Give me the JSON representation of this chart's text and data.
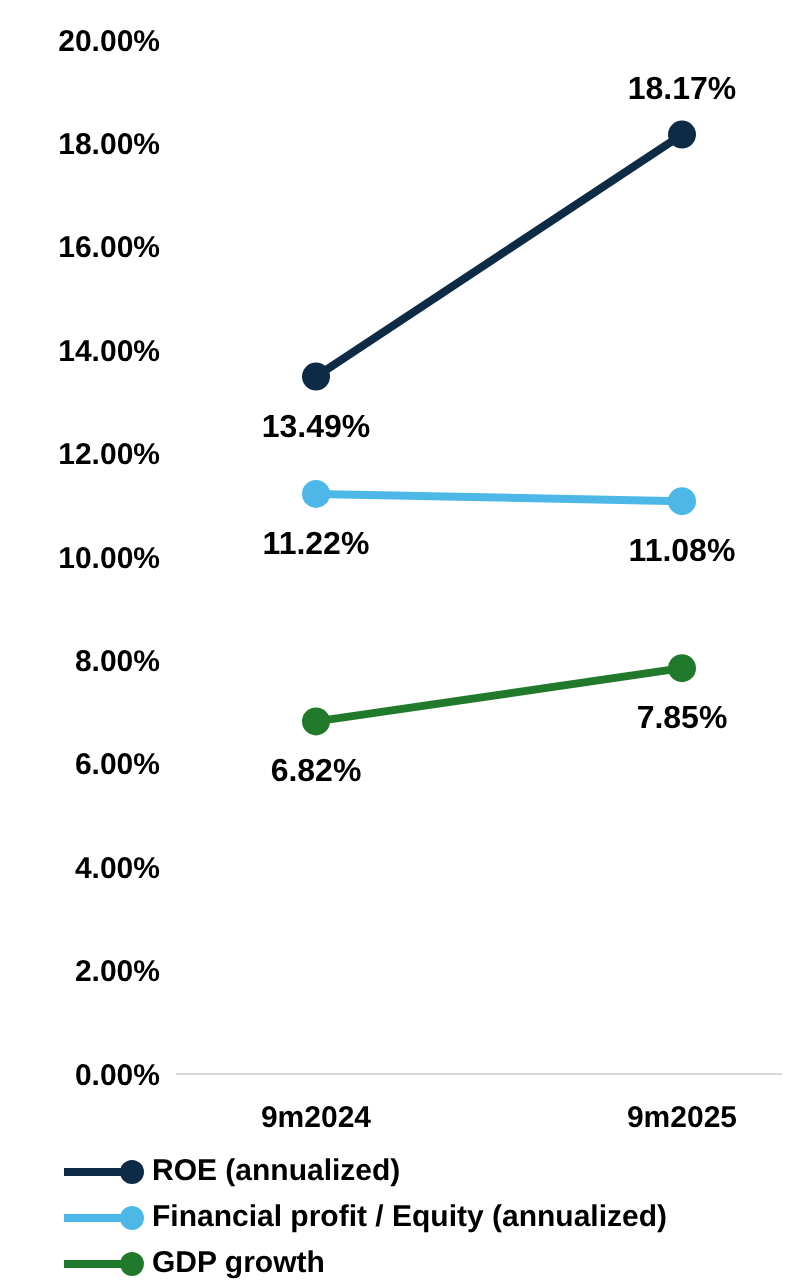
{
  "chart_data": {
    "type": "line",
    "categories": [
      "9m2024",
      "9m2025"
    ],
    "series": [
      {
        "name": "ROE (annualized)",
        "color": "#0d2b45",
        "values": [
          13.49,
          18.17
        ],
        "value_labels": [
          "13.49%",
          "18.17%"
        ]
      },
      {
        "name": "Financial profit / Equity (annualized)",
        "color": "#4db8e8",
        "values": [
          11.22,
          11.08
        ],
        "value_labels": [
          "11.22%",
          "11.08%"
        ]
      },
      {
        "name": "GDP growth",
        "color": "#217a2b",
        "values": [
          6.82,
          7.85
        ],
        "value_labels": [
          "6.82%",
          "7.85%"
        ]
      }
    ],
    "ylim": [
      0,
      20
    ],
    "yticks": [
      {
        "value": 0,
        "label": "0.00%"
      },
      {
        "value": 2,
        "label": "2.00%"
      },
      {
        "value": 4,
        "label": "4.00%"
      },
      {
        "value": 6,
        "label": "6.00%"
      },
      {
        "value": 8,
        "label": "8.00%"
      },
      {
        "value": 10,
        "label": "10.00%"
      },
      {
        "value": 12,
        "label": "12.00%"
      },
      {
        "value": 14,
        "label": "14.00%"
      },
      {
        "value": 16,
        "label": "16.00%"
      },
      {
        "value": 18,
        "label": "18.00%"
      },
      {
        "value": 20,
        "label": "20.00%"
      }
    ],
    "grid": false,
    "legend": "bottom",
    "marker": "circle",
    "line_style": "solid"
  }
}
